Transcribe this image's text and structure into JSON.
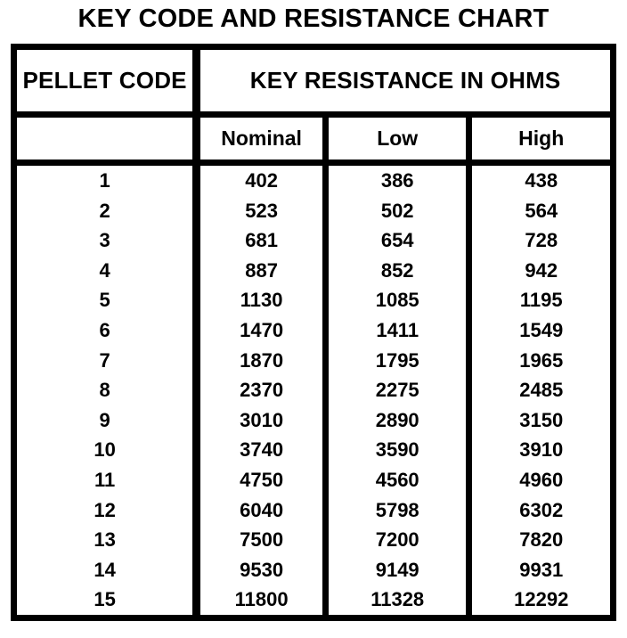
{
  "colors": {
    "background": "#ffffff",
    "text": "#000000",
    "border": "#000000"
  },
  "chart_data": {
    "type": "table",
    "title": "KEY CODE AND RESISTANCE CHART",
    "header": {
      "pellet_code": "PELLET CODE",
      "group": "KEY RESISTANCE IN OHMS",
      "sub": [
        "Nominal",
        "Low",
        "High"
      ]
    },
    "columns": [
      "PELLET CODE",
      "Nominal",
      "Low",
      "High"
    ],
    "rows": [
      [
        "1",
        "402",
        "386",
        "438"
      ],
      [
        "2",
        "523",
        "502",
        "564"
      ],
      [
        "3",
        "681",
        "654",
        "728"
      ],
      [
        "4",
        "887",
        "852",
        "942"
      ],
      [
        "5",
        "1130",
        "1085",
        "1195"
      ],
      [
        "6",
        "1470",
        "1411",
        "1549"
      ],
      [
        "7",
        "1870",
        "1795",
        "1965"
      ],
      [
        "8",
        "2370",
        "2275",
        "2485"
      ],
      [
        "9",
        "3010",
        "2890",
        "3150"
      ],
      [
        "10",
        "3740",
        "3590",
        "3910"
      ],
      [
        "11",
        "4750",
        "4560",
        "4960"
      ],
      [
        "12",
        "6040",
        "5798",
        "6302"
      ],
      [
        "13",
        "7500",
        "7200",
        "7820"
      ],
      [
        "14",
        "9530",
        "9149",
        "9931"
      ],
      [
        "15",
        "11800",
        "11328",
        "12292"
      ]
    ]
  }
}
